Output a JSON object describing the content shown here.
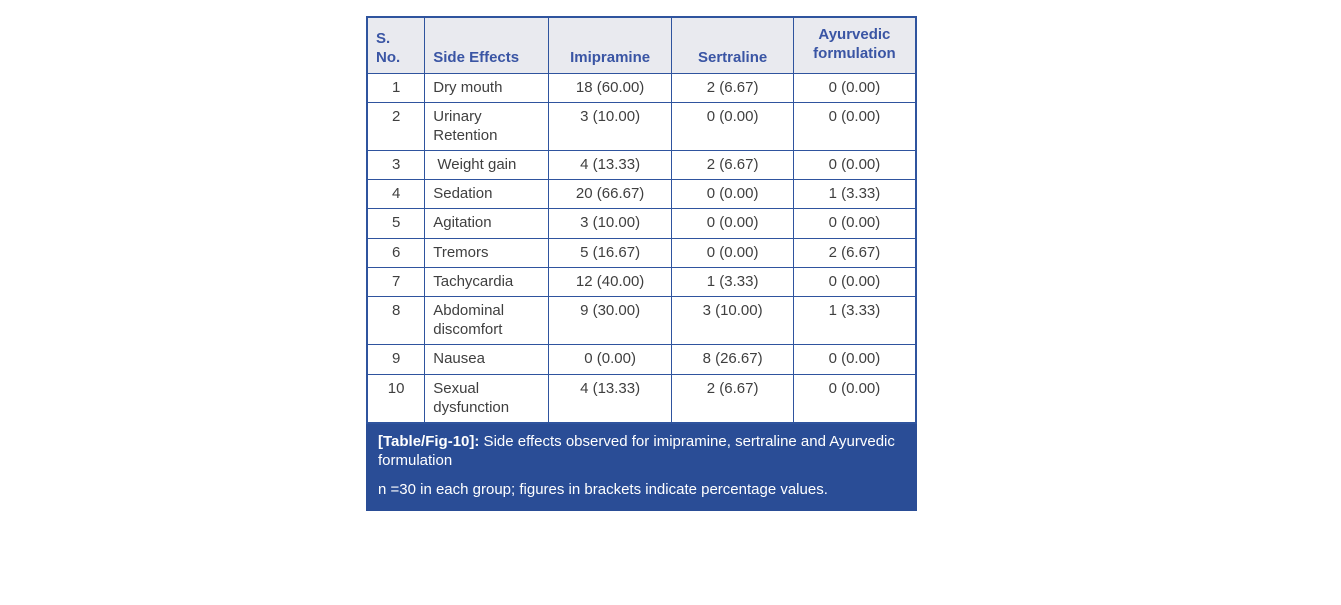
{
  "table": {
    "columns": {
      "sno": "S. No.",
      "effect": "Side Effects",
      "imipramine": "Imipramine",
      "sertraline": "Sertraline",
      "ayurvedic": "Ayurvedic formulation"
    },
    "rows": [
      {
        "no": "1",
        "effect": "Dry mouth",
        "imipramine": "18 (60.00)",
        "sertraline": "2 (6.67)",
        "ayurvedic": "0 (0.00)"
      },
      {
        "no": "2",
        "effect": "Urinary Retention",
        "imipramine": "3 (10.00)",
        "sertraline": "0 (0.00)",
        "ayurvedic": "0 (0.00)"
      },
      {
        "no": "3",
        "effect": " Weight gain",
        "imipramine": "4 (13.33)",
        "sertraline": "2 (6.67)",
        "ayurvedic": "0 (0.00)"
      },
      {
        "no": "4",
        "effect": "Sedation",
        "imipramine": "20 (66.67)",
        "sertraline": "0 (0.00)",
        "ayurvedic": "1 (3.33)"
      },
      {
        "no": "5",
        "effect": "Agitation",
        "imipramine": "3 (10.00)",
        "sertraline": "0 (0.00)",
        "ayurvedic": "0 (0.00)"
      },
      {
        "no": "6",
        "effect": "Tremors",
        "imipramine": "5 (16.67)",
        "sertraline": "0 (0.00)",
        "ayurvedic": "2 (6.67)"
      },
      {
        "no": "7",
        "effect": "Tachycardia",
        "imipramine": "12 (40.00)",
        "sertraline": "1 (3.33)",
        "ayurvedic": "0 (0.00)"
      },
      {
        "no": "8",
        "effect": "Abdominal discomfort",
        "imipramine": "9 (30.00)",
        "sertraline": "3 (10.00)",
        "ayurvedic": "1 (3.33)"
      },
      {
        "no": "9",
        "effect": "Nausea",
        "imipramine": "0 (0.00)",
        "sertraline": "8 (26.67)",
        "ayurvedic": "0 (0.00)"
      },
      {
        "no": "10",
        "effect": "Sexual dysfunction",
        "imipramine": "4 (13.33)",
        "sertraline": "2 (6.67)",
        "ayurvedic": "0 (0.00)"
      }
    ]
  },
  "caption": {
    "tag": "[Table/Fig-10]:",
    "text": " Side effects observed for imipramine, sertraline and Ayurvedic formulation",
    "note": "n =30 in each group; figures in brackets indicate percentage values."
  },
  "colors": {
    "border": "#2f549e",
    "header_bg": "#e9eaef",
    "header_text": "#3a55a4",
    "body_text": "#3f3f3f",
    "caption_bg": "#2a4d96",
    "caption_text": "#ffffff"
  }
}
